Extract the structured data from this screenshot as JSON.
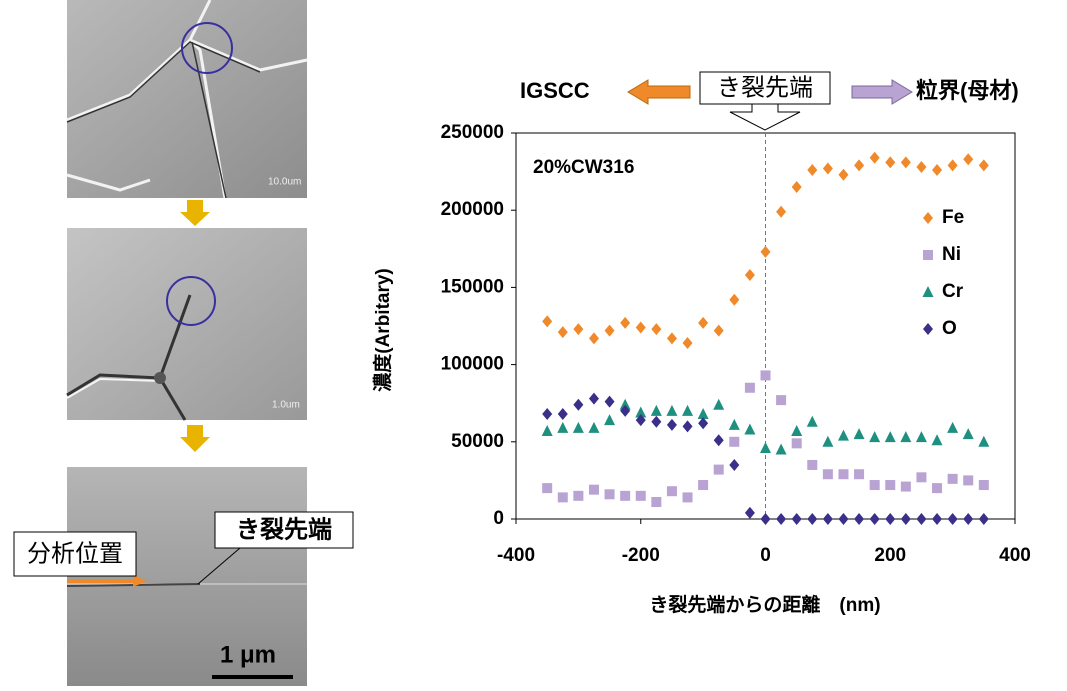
{
  "images": {
    "scale_labels": [
      "10.0um",
      "1.0um"
    ],
    "analysis_label": "分析位置",
    "tip_label": "き裂先端",
    "scale_bar": "1 μm"
  },
  "header": {
    "left": "IGSCC",
    "center": "き裂先端",
    "right": "粒界(母材)"
  },
  "chart_data": {
    "type": "scatter",
    "annotation": "20%CW316",
    "xlabel": "き裂先端からの距離　(nm)",
    "ylabel": "濃度(Arbitary)",
    "xlim": [
      -400,
      400
    ],
    "xticks": [
      -400,
      -200,
      0,
      200,
      400
    ],
    "ylim": [
      0,
      250000
    ],
    "yticks": [
      0,
      50000,
      100000,
      150000,
      200000,
      250000
    ],
    "vline": 0,
    "x": [
      -350,
      -325,
      -300,
      -275,
      -250,
      -225,
      -200,
      -175,
      -150,
      -125,
      -100,
      -75,
      -50,
      -25,
      0,
      25,
      50,
      75,
      100,
      125,
      150,
      175,
      200,
      225,
      250,
      275,
      300,
      325,
      350
    ],
    "series": [
      {
        "name": "Fe",
        "color": "#f0892a",
        "marker": "diamond",
        "values": [
          128000,
          121000,
          123000,
          117000,
          122000,
          127000,
          124000,
          123000,
          117000,
          114000,
          127000,
          122000,
          142000,
          158000,
          173000,
          199000,
          215000,
          226000,
          227000,
          223000,
          229000,
          234000,
          231000,
          231000,
          228000,
          226000,
          229000,
          233000,
          229000
        ]
      },
      {
        "name": "Ni",
        "color": "#b8a3d3",
        "marker": "square",
        "values": [
          20000,
          14000,
          15000,
          19000,
          16000,
          15000,
          15000,
          11000,
          18000,
          14000,
          22000,
          32000,
          50000,
          85000,
          93000,
          77000,
          49000,
          35000,
          29000,
          29000,
          29000,
          22000,
          22000,
          21000,
          27000,
          20000,
          26000,
          25000,
          22000
        ]
      },
      {
        "name": "Cr",
        "color": "#1f9080",
        "marker": "triangle",
        "values": [
          57000,
          59000,
          59000,
          59000,
          64000,
          74000,
          69000,
          70000,
          70000,
          70000,
          68000,
          74000,
          61000,
          58000,
          46000,
          45000,
          57000,
          63000,
          50000,
          54000,
          55000,
          53000,
          53000,
          53000,
          53000,
          51000,
          59000,
          55000,
          50000
        ]
      },
      {
        "name": "O",
        "color": "#3a2f89",
        "marker": "diamond",
        "values": [
          68000,
          68000,
          74000,
          78000,
          76000,
          70000,
          64000,
          63000,
          61000,
          60000,
          62000,
          51000,
          35000,
          4000,
          0,
          0,
          0,
          0,
          0,
          0,
          0,
          0,
          0,
          0,
          0,
          0,
          0,
          0,
          0
        ]
      }
    ]
  }
}
